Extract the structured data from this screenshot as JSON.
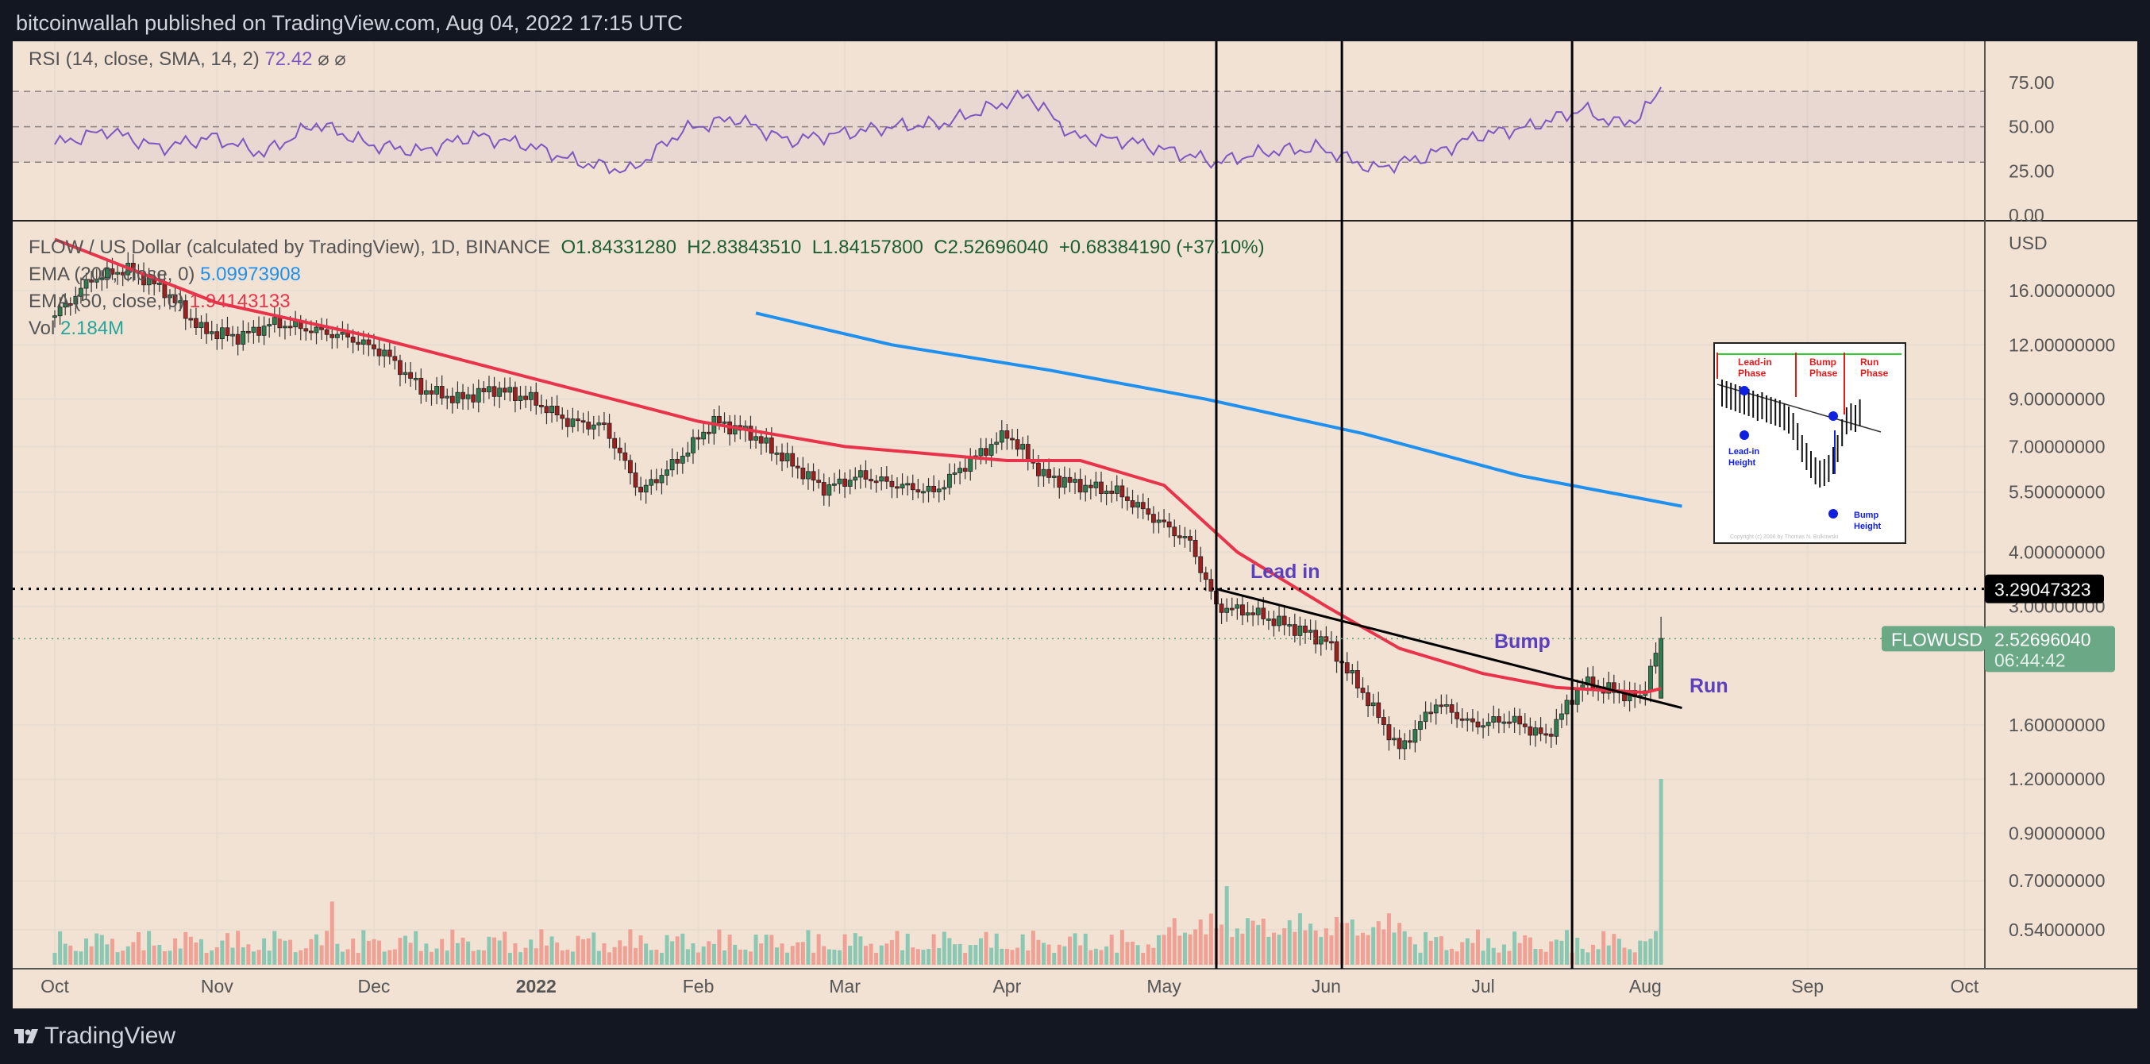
{
  "header": {
    "text": "bitcoinwallah published on TradingView.com, Aug 04, 2022 17:15 UTC"
  },
  "footer": {
    "brand": "TradingView"
  },
  "rsi_legend": {
    "label": "RSI (14, close, SMA, 14, 2)",
    "value": "72.42",
    "extra": "⌀ ⌀"
  },
  "legend": {
    "symbol": "FLOW / US Dollar (calculated by TradingView), 1D, BINANCE",
    "open": "O1.84331280",
    "high": "H2.83843510",
    "low": "L1.84157800",
    "close": "C2.52696040",
    "change": "+0.68384190 (+37.10%)",
    "ema200_label": "EMA (200, close, 0)",
    "ema200_value": "5.09973908",
    "ema50_label": "EMA (50, close, 0)",
    "ema50_value": "1.94143133",
    "vol_label": "Vol",
    "vol_value": "2.184M"
  },
  "price_axis": {
    "currency": "USD",
    "hline_label": "3.29047323",
    "symbol_tag": "FLOWUSD",
    "last_price": "2.52696040",
    "countdown": "06:44:42"
  },
  "annotations": {
    "lead_in": "Lead in",
    "bump": "Bump",
    "run": "Run"
  },
  "inset": {
    "lead_in_phase": "Lead-in Phase",
    "bump_phase": "Bump Phase",
    "run_phase": "Run Phase",
    "lead_in_height": "Lead-in Height",
    "bump_height": "Bump Height",
    "copyright": "Copyright (c) 2006 by Thomas N. Bulkowski"
  },
  "colors": {
    "bg": "#f2e2d3",
    "up": "#2e7d4f",
    "down": "#9e1f1f",
    "ema50": "#e8334a",
    "ema200": "#1e90f0",
    "rsi": "#7e57c2",
    "annot": "#5b3fbf"
  },
  "chart_data": {
    "type": "candlestick",
    "title": "FLOW / US Dollar, 1D, BINANCE",
    "scale": "log",
    "y_ticks": [
      16,
      12,
      9,
      7,
      5.5,
      4,
      3,
      1.6,
      1.2,
      0.9,
      0.7,
      0.54
    ],
    "y_tick_labels": [
      "16.00000000",
      "12.00000000",
      "9.00000000",
      "7.00000000",
      "5.50000000",
      "4.00000000",
      "3.00000000",
      "1.60000000",
      "1.20000000",
      "0.90000000",
      "0.70000000",
      "0.54000000"
    ],
    "x_tick_labels": [
      {
        "day": 0,
        "label": "Oct"
      },
      {
        "day": 31,
        "label": "Nov"
      },
      {
        "day": 61,
        "label": "Dec"
      },
      {
        "day": 92,
        "label": "2022"
      },
      {
        "day": 123,
        "label": "Feb"
      },
      {
        "day": 151,
        "label": "Mar"
      },
      {
        "day": 182,
        "label": "Apr"
      },
      {
        "day": 212,
        "label": "May"
      },
      {
        "day": 243,
        "label": "Jun"
      },
      {
        "day": 273,
        "label": "Jul"
      },
      {
        "day": 304,
        "label": "Aug"
      },
      {
        "day": 335,
        "label": "Sep"
      },
      {
        "day": 365,
        "label": "Oct"
      }
    ],
    "weekly_close": [
      [
        0,
        14
      ],
      [
        7,
        17
      ],
      [
        14,
        18
      ],
      [
        21,
        16
      ],
      [
        28,
        13
      ],
      [
        35,
        12.5
      ],
      [
        42,
        13.5
      ],
      [
        49,
        13
      ],
      [
        56,
        12.5
      ],
      [
        63,
        11.5
      ],
      [
        70,
        9.5
      ],
      [
        77,
        9
      ],
      [
        84,
        9.5
      ],
      [
        91,
        9
      ],
      [
        98,
        8
      ],
      [
        105,
        7.8
      ],
      [
        112,
        5.5
      ],
      [
        119,
        6.5
      ],
      [
        126,
        8
      ],
      [
        133,
        7.5
      ],
      [
        140,
        6.5
      ],
      [
        147,
        5.6
      ],
      [
        154,
        6
      ],
      [
        161,
        5.7
      ],
      [
        168,
        5.5
      ],
      [
        175,
        6.5
      ],
      [
        182,
        7.5
      ],
      [
        189,
        6
      ],
      [
        196,
        5.7
      ],
      [
        203,
        5.5
      ],
      [
        210,
        4.8
      ],
      [
        217,
        4.2
      ],
      [
        222,
        3.0
      ],
      [
        229,
        2.9
      ],
      [
        236,
        2.7
      ],
      [
        243,
        2.5
      ],
      [
        250,
        1.9
      ],
      [
        257,
        1.4
      ],
      [
        264,
        1.8
      ],
      [
        271,
        1.6
      ],
      [
        278,
        1.65
      ],
      [
        285,
        1.5
      ],
      [
        292,
        2.0
      ],
      [
        299,
        1.9
      ],
      [
        303,
        1.84
      ],
      [
        307,
        2.53
      ]
    ],
    "ema50": [
      [
        0,
        21
      ],
      [
        31,
        15
      ],
      [
        61,
        12.5
      ],
      [
        92,
        10
      ],
      [
        123,
        8
      ],
      [
        151,
        7
      ],
      [
        182,
        6.5
      ],
      [
        196,
        6.5
      ],
      [
        212,
        5.7
      ],
      [
        226,
        4.0
      ],
      [
        243,
        3.0
      ],
      [
        257,
        2.4
      ],
      [
        273,
        2.1
      ],
      [
        287,
        1.95
      ],
      [
        304,
        1.9
      ],
      [
        307,
        1.94
      ]
    ],
    "ema200": [
      [
        134,
        14.2
      ],
      [
        160,
        12
      ],
      [
        190,
        10.5
      ],
      [
        220,
        9
      ],
      [
        250,
        7.5
      ],
      [
        280,
        6
      ],
      [
        311,
        5.1
      ]
    ],
    "hline": 3.29047323,
    "trendline": [
      [
        222,
        3.29
      ],
      [
        311,
        1.75
      ]
    ],
    "vertical_markers_day": [
      222,
      246,
      290
    ],
    "rsi": {
      "ylim": [
        0,
        100
      ],
      "ticks": [
        75,
        50,
        25,
        0
      ],
      "tick_labels": [
        "75.00",
        "50.00",
        "25.00",
        "0.00"
      ],
      "bands": [
        70,
        50,
        30
      ],
      "values": [
        [
          0,
          40
        ],
        [
          10,
          48
        ],
        [
          20,
          38
        ],
        [
          30,
          44
        ],
        [
          40,
          35
        ],
        [
          50,
          52
        ],
        [
          60,
          40
        ],
        [
          70,
          36
        ],
        [
          80,
          45
        ],
        [
          90,
          40
        ],
        [
          100,
          30
        ],
        [
          110,
          25
        ],
        [
          120,
          48
        ],
        [
          130,
          55
        ],
        [
          140,
          42
        ],
        [
          150,
          46
        ],
        [
          160,
          50
        ],
        [
          170,
          52
        ],
        [
          180,
          62
        ],
        [
          186,
          68
        ],
        [
          195,
          44
        ],
        [
          205,
          42
        ],
        [
          215,
          35
        ],
        [
          222,
          30
        ],
        [
          232,
          36
        ],
        [
          242,
          38
        ],
        [
          252,
          26
        ],
        [
          262,
          33
        ],
        [
          272,
          45
        ],
        [
          282,
          50
        ],
        [
          292,
          60
        ],
        [
          298,
          52
        ],
        [
          303,
          55
        ],
        [
          307,
          72.42
        ]
      ]
    },
    "volume": {
      "last": "2.184M",
      "spike_day": 307
    }
  }
}
